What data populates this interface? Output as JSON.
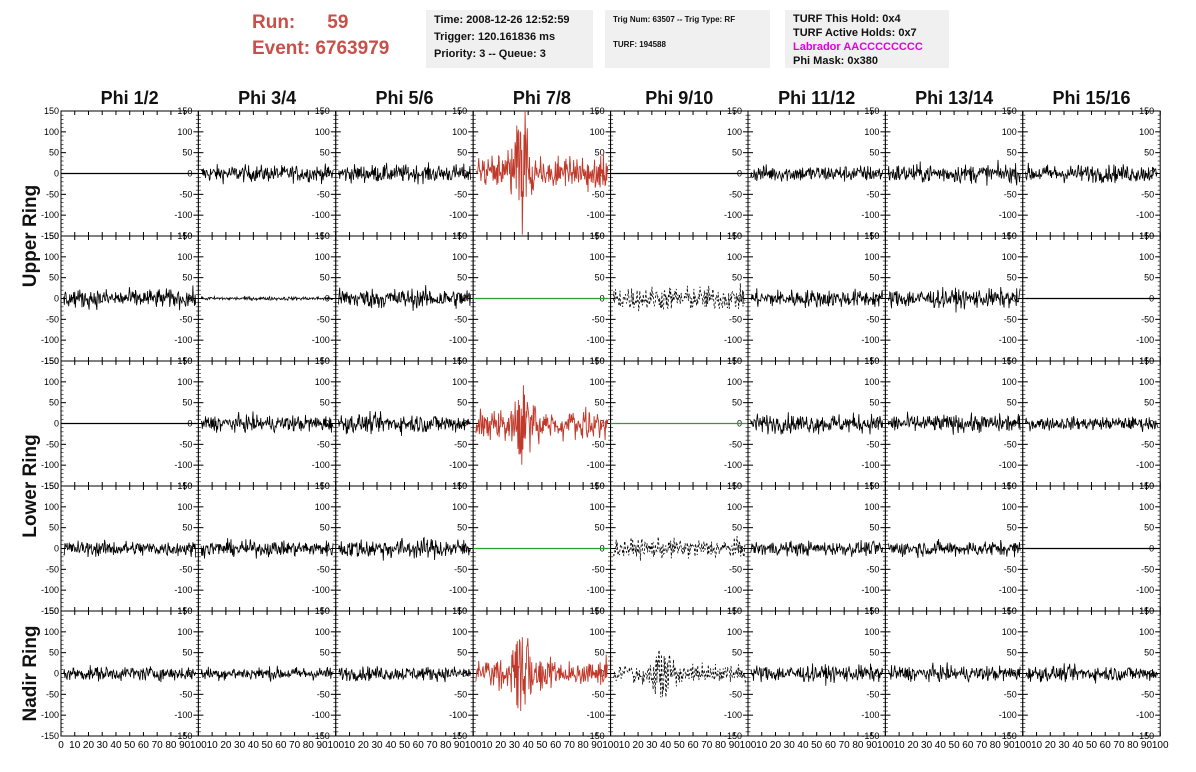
{
  "header": {
    "run_label": "Run:",
    "run_value": "59",
    "event_label": "Event:",
    "event_value": "6763979",
    "time": "Time: 2008-12-26 12:52:59",
    "trigger": "Trigger: 120.161836 ms",
    "priority": "Priority: 3 -- Queue: 3",
    "trig_num": "Trig Num: 63507 -- Trig Type: RF",
    "turf": "TURF: 194588",
    "turf_hold": "TURF This Hold: 0x4",
    "turf_active": "TURF Active Holds: 0x7",
    "labrador": "Labrador AACCCCCCCC",
    "phi_mask": "Phi Mask: 0x380"
  },
  "chart_data": {
    "type": "line",
    "columns": [
      "Phi 1/2",
      "Phi 3/4",
      "Phi 5/6",
      "Phi 7/8",
      "Phi 9/10",
      "Phi 11/12",
      "Phi 13/14",
      "Phi 15/16"
    ],
    "rings": [
      {
        "label": "Upper Ring",
        "rows": [
          0,
          1
        ]
      },
      {
        "label": "Lower Ring",
        "rows": [
          2,
          3
        ]
      },
      {
        "label": "Nadir Ring",
        "rows": [
          4
        ]
      }
    ],
    "ylim": [
      -150,
      150
    ],
    "yticks": [
      -150,
      -100,
      -50,
      0,
      50,
      100,
      150
    ],
    "xlim": [
      0,
      100
    ],
    "xticks": [
      0,
      10,
      20,
      30,
      40,
      50,
      60,
      70,
      80,
      90,
      100
    ],
    "xtick_labels_first": [
      "0",
      "10",
      "20",
      "30",
      "40",
      "50",
      "60",
      "70",
      "80",
      "90",
      "100"
    ],
    "xtick_labels_rest": [
      "10",
      "20",
      "30",
      "40",
      "50",
      "60",
      "70",
      "80",
      "90",
      "100"
    ],
    "colors": {
      "normal": "#000000",
      "triggered": "#c0392b",
      "flat_green": "#2e9e2e",
      "flat_black": "#000000"
    },
    "panels": [
      [
        {
          "style": "flat",
          "color": "flat_black",
          "amp": 0
        },
        {
          "style": "noise",
          "color": "normal",
          "amp": 14
        },
        {
          "style": "noise",
          "color": "normal",
          "amp": 15
        },
        {
          "style": "pulse",
          "color": "triggered",
          "amp": 28,
          "peak": 145,
          "center": 35
        },
        {
          "style": "flat",
          "color": "flat_black",
          "amp": 0
        },
        {
          "style": "noise",
          "color": "normal",
          "amp": 14
        },
        {
          "style": "noise",
          "color": "normal",
          "amp": 16
        },
        {
          "style": "noise",
          "color": "normal",
          "amp": 15
        }
      ],
      [
        {
          "style": "noise",
          "color": "normal",
          "amp": 16
        },
        {
          "style": "noise",
          "color": "normal",
          "amp": 3
        },
        {
          "style": "noise",
          "color": "normal",
          "amp": 17
        },
        {
          "style": "flat",
          "color": "flat_green",
          "amp": 0
        },
        {
          "style": "dashed",
          "color": "normal",
          "amp": 20
        },
        {
          "style": "noise",
          "color": "normal",
          "amp": 15
        },
        {
          "style": "noise",
          "color": "normal",
          "amp": 16
        },
        {
          "style": "flat",
          "color": "flat_black",
          "amp": 0
        }
      ],
      [
        {
          "style": "flat",
          "color": "flat_black",
          "amp": 0
        },
        {
          "style": "noise",
          "color": "normal",
          "amp": 14
        },
        {
          "style": "noise",
          "color": "normal",
          "amp": 16
        },
        {
          "style": "pulse",
          "color": "triggered",
          "amp": 26,
          "peak": 75,
          "center": 36
        },
        {
          "style": "flat",
          "color": "flat_green",
          "amp": 0
        },
        {
          "style": "noise",
          "color": "normal",
          "amp": 16
        },
        {
          "style": "noise",
          "color": "normal",
          "amp": 15
        },
        {
          "style": "noise",
          "color": "normal",
          "amp": 11
        }
      ],
      [
        {
          "style": "noise",
          "color": "normal",
          "amp": 13
        },
        {
          "style": "noise",
          "color": "normal",
          "amp": 13
        },
        {
          "style": "noise",
          "color": "normal",
          "amp": 17
        },
        {
          "style": "flat",
          "color": "flat_green",
          "amp": 0
        },
        {
          "style": "dashed",
          "color": "normal",
          "amp": 16
        },
        {
          "style": "noise",
          "color": "normal",
          "amp": 12
        },
        {
          "style": "noise",
          "color": "normal",
          "amp": 13
        },
        {
          "style": "flat",
          "color": "flat_black",
          "amp": 0
        }
      ],
      [
        {
          "style": "noise",
          "color": "normal",
          "amp": 12
        },
        {
          "style": "noise",
          "color": "normal",
          "amp": 11
        },
        {
          "style": "noise",
          "color": "normal",
          "amp": 12
        },
        {
          "style": "pulse",
          "color": "triggered",
          "amp": 24,
          "peak": 110,
          "center": 35
        },
        {
          "style": "dashed",
          "color": "normal",
          "amp": 15,
          "peak": 60,
          "center": 38
        },
        {
          "style": "noise",
          "color": "normal",
          "amp": 14
        },
        {
          "style": "noise",
          "color": "normal",
          "amp": 13
        },
        {
          "style": "noise",
          "color": "normal",
          "amp": 13
        }
      ]
    ]
  }
}
